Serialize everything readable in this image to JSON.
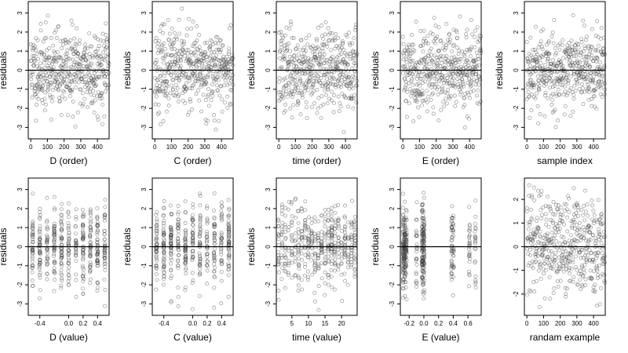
{
  "chart_data": [
    {
      "type": "scatter",
      "xlabel": "D (order)",
      "ylabel": "residuals",
      "xticks": [
        "0",
        "100",
        "200",
        "300",
        "400"
      ],
      "xticks_values": [
        0,
        100,
        200,
        300,
        400
      ],
      "yticks": [
        "-3",
        "-2",
        "-1",
        "0",
        "1",
        "2",
        "3"
      ],
      "xlim": [
        -15,
        470
      ],
      "ylim": [
        -3.6,
        3.6
      ],
      "n_points": 470,
      "x_kind": "index",
      "seed": 11
    },
    {
      "type": "scatter",
      "xlabel": "C (order)",
      "ylabel": "residuals",
      "xticks": [
        "0",
        "100",
        "200",
        "300",
        "400"
      ],
      "xticks_values": [
        0,
        100,
        200,
        300,
        400
      ],
      "yticks": [
        "-3",
        "-2",
        "-1",
        "0",
        "1",
        "2",
        "3"
      ],
      "xlim": [
        -15,
        470
      ],
      "ylim": [
        -3.6,
        3.6
      ],
      "n_points": 470,
      "x_kind": "index",
      "seed": 23
    },
    {
      "type": "scatter",
      "xlabel": "time (order)",
      "ylabel": "residuals",
      "xticks": [
        "0",
        "100",
        "200",
        "300",
        "400"
      ],
      "xticks_values": [
        0,
        100,
        200,
        300,
        400
      ],
      "yticks": [
        "-3",
        "-2",
        "-1",
        "0",
        "1",
        "2",
        "3"
      ],
      "xlim": [
        -15,
        470
      ],
      "ylim": [
        -3.6,
        3.6
      ],
      "n_points": 470,
      "x_kind": "index",
      "seed": 37
    },
    {
      "type": "scatter",
      "xlabel": "E (order)",
      "ylabel": "residuals",
      "xticks": [
        "0",
        "100",
        "200",
        "300",
        "400"
      ],
      "xticks_values": [
        0,
        100,
        200,
        300,
        400
      ],
      "yticks": [
        "-3",
        "-2",
        "-1",
        "0",
        "1",
        "2",
        "3"
      ],
      "xlim": [
        -15,
        470
      ],
      "ylim": [
        -3.6,
        3.6
      ],
      "n_points": 470,
      "x_kind": "index",
      "seed": 41
    },
    {
      "type": "scatter",
      "xlabel": "sample index",
      "ylabel": "residuals",
      "xticks": [
        "0",
        "100",
        "200",
        "300",
        "400"
      ],
      "xticks_values": [
        0,
        100,
        200,
        300,
        400
      ],
      "yticks": [
        "-3",
        "-2",
        "-1",
        "0",
        "1",
        "2",
        "3"
      ],
      "xlim": [
        -15,
        470
      ],
      "ylim": [
        -3.6,
        3.6
      ],
      "n_points": 470,
      "x_kind": "index",
      "seed": 53
    },
    {
      "type": "scatter",
      "xlabel": "D (value)",
      "ylabel": "residuals",
      "xticks": [
        "-0.4",
        "0.0",
        "0.2",
        "0.4"
      ],
      "xticks_values": [
        -0.4,
        0.0,
        0.2,
        0.4
      ],
      "yticks": [
        "-3",
        "-2",
        "-1",
        "0",
        "1",
        "2",
        "3"
      ],
      "xlim": [
        -0.56,
        0.56
      ],
      "ylim": [
        -3.6,
        3.6
      ],
      "n_points": 470,
      "x_kind": "levels",
      "x_levels": [
        -0.5,
        -0.4,
        -0.3,
        -0.2,
        -0.1,
        0.0,
        0.1,
        0.2,
        0.3,
        0.4,
        0.5
      ],
      "seed": 61
    },
    {
      "type": "scatter",
      "xlabel": "C (value)",
      "ylabel": "residuals",
      "xticks": [
        "-0.4",
        "0.0",
        "0.2",
        "0.4"
      ],
      "xticks_values": [
        -0.4,
        0.0,
        0.2,
        0.4
      ],
      "yticks": [
        "-3",
        "-2",
        "-1",
        "0",
        "1",
        "2",
        "3"
      ],
      "xlim": [
        -0.56,
        0.56
      ],
      "ylim": [
        -3.6,
        3.6
      ],
      "n_points": 470,
      "x_kind": "levels",
      "x_levels": [
        -0.5,
        -0.4,
        -0.3,
        -0.2,
        -0.1,
        0.0,
        0.1,
        0.2,
        0.3,
        0.4,
        0.5
      ],
      "seed": 67
    },
    {
      "type": "scatter",
      "xlabel": "time (value)",
      "ylabel": "residuals",
      "xticks": [
        "5",
        "10",
        "15",
        "20"
      ],
      "xticks_values": [
        5,
        10,
        15,
        20
      ],
      "yticks": [
        "-3",
        "-2",
        "-1",
        "0",
        "1",
        "2",
        "3"
      ],
      "xlim": [
        0.3,
        24.7
      ],
      "ylim": [
        -3.6,
        3.6
      ],
      "n_points": 470,
      "x_kind": "levels",
      "x_levels": [
        1,
        2,
        3,
        4,
        5,
        6,
        7,
        8,
        9,
        10,
        11,
        12,
        13,
        14,
        15,
        16,
        17,
        18,
        19,
        20,
        21,
        22,
        23,
        24
      ],
      "seed": 71
    },
    {
      "type": "scatter",
      "xlabel": "E (value)",
      "ylabel": "residuals",
      "xticks": [
        "-0.2",
        "0.0",
        "0.2",
        "0.4",
        "0.6"
      ],
      "xticks_values": [
        -0.2,
        0.0,
        0.2,
        0.4,
        0.6
      ],
      "yticks": [
        "-3",
        "-2",
        "-1",
        "0",
        "1",
        "2",
        "3"
      ],
      "xlim": [
        -0.32,
        0.78
      ],
      "ylim": [
        -3.6,
        3.6
      ],
      "n_points": 470,
      "x_kind": "levels",
      "x_levels": [
        -0.28,
        -0.26,
        -0.24,
        -0.1,
        -0.02,
        0.0,
        0.38,
        0.4,
        0.62,
        0.7
      ],
      "x_weights": [
        3,
        3,
        2,
        1,
        3,
        3,
        1,
        1,
        1,
        1
      ],
      "seed": 79
    },
    {
      "type": "scatter",
      "xlabel": "randam example",
      "ylabel": "",
      "xticks": [
        "0",
        "100",
        "200",
        "300",
        "400"
      ],
      "xticks_values": [
        0,
        100,
        200,
        300,
        400
      ],
      "yticks": [
        "-2",
        "-1",
        "0",
        "1",
        "2"
      ],
      "xlim": [
        -15,
        470
      ],
      "ylim": [
        -2.9,
        2.9
      ],
      "n_points": 470,
      "x_kind": "index",
      "seed": 97
    }
  ]
}
